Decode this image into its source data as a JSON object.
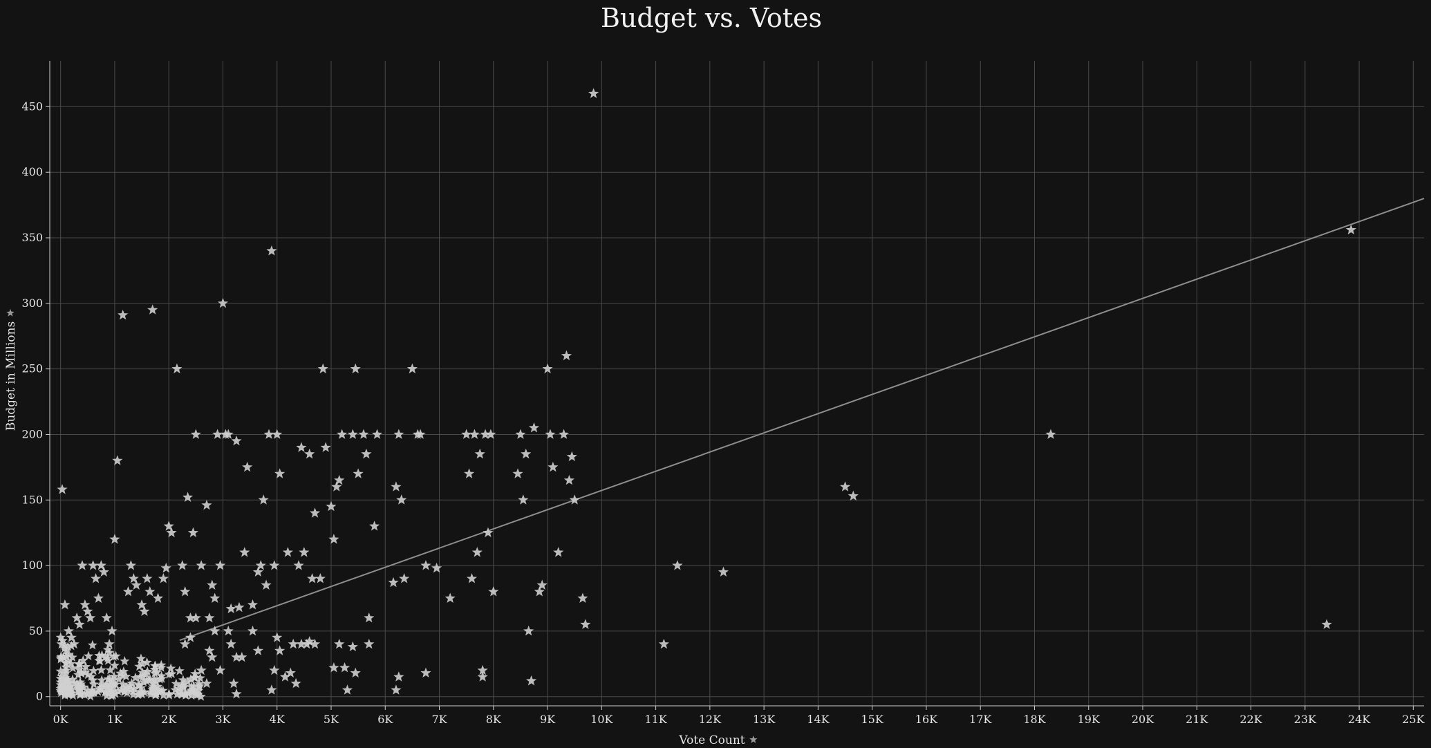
{
  "chart_data": {
    "type": "scatter",
    "title": "Budget vs. Votes",
    "xlabel": "Vote Count",
    "ylabel": "Budget in Millions",
    "xlim": [
      -200,
      25200
    ],
    "ylim": [
      -7,
      485
    ],
    "x_ticks": [
      0,
      1000,
      2000,
      3000,
      4000,
      5000,
      6000,
      7000,
      8000,
      9000,
      10000,
      11000,
      12000,
      13000,
      14000,
      15000,
      16000,
      17000,
      18000,
      19000,
      20000,
      21000,
      22000,
      23000,
      24000,
      25000
    ],
    "x_tick_labels": [
      "0K",
      "1K",
      "2K",
      "3K",
      "4K",
      "5K",
      "6K",
      "7K",
      "8K",
      "9K",
      "10K",
      "11K",
      "12K",
      "13K",
      "14K",
      "15K",
      "16K",
      "17K",
      "18K",
      "19K",
      "20K",
      "21K",
      "22K",
      "23K",
      "24K",
      "25K"
    ],
    "y_ticks": [
      0,
      50,
      100,
      150,
      200,
      250,
      300,
      350,
      400,
      450
    ],
    "y_tick_labels": [
      "0",
      "50",
      "100",
      "150",
      "200",
      "250",
      "300",
      "350",
      "400",
      "450"
    ],
    "grid": true,
    "marker": "star",
    "marker_color": "#cfcfcf",
    "trendline": {
      "x": [
        2200,
        25200
      ],
      "y": [
        43,
        380
      ],
      "color": "#8e8e8e"
    },
    "points": [
      [
        30,
        158
      ],
      [
        80,
        70
      ],
      [
        20,
        40
      ],
      [
        50,
        30
      ],
      [
        100,
        20
      ],
      [
        150,
        50
      ],
      [
        200,
        45
      ],
      [
        250,
        40
      ],
      [
        300,
        60
      ],
      [
        350,
        55
      ],
      [
        400,
        100
      ],
      [
        450,
        70
      ],
      [
        500,
        65
      ],
      [
        550,
        60
      ],
      [
        600,
        100
      ],
      [
        650,
        90
      ],
      [
        700,
        75
      ],
      [
        750,
        100
      ],
      [
        800,
        95
      ],
      [
        850,
        60
      ],
      [
        900,
        40
      ],
      [
        950,
        50
      ],
      [
        1000,
        120
      ],
      [
        1050,
        180
      ],
      [
        1150,
        291
      ],
      [
        1250,
        80
      ],
      [
        1300,
        100
      ],
      [
        1350,
        90
      ],
      [
        1400,
        85
      ],
      [
        1500,
        70
      ],
      [
        1550,
        65
      ],
      [
        1600,
        90
      ],
      [
        1650,
        80
      ],
      [
        1700,
        295
      ],
      [
        1800,
        75
      ],
      [
        1900,
        90
      ],
      [
        1950,
        98
      ],
      [
        2000,
        130
      ],
      [
        2050,
        125
      ],
      [
        2150,
        250
      ],
      [
        2250,
        100
      ],
      [
        2300,
        80
      ],
      [
        2350,
        152
      ],
      [
        2400,
        60
      ],
      [
        2450,
        125
      ],
      [
        2500,
        200
      ],
      [
        2600,
        100
      ],
      [
        2700,
        146
      ],
      [
        2750,
        60
      ],
      [
        2800,
        85
      ],
      [
        2850,
        75
      ],
      [
        2900,
        200
      ],
      [
        2950,
        100
      ],
      [
        3000,
        300
      ],
      [
        3050,
        200
      ],
      [
        3100,
        200
      ],
      [
        3150,
        67
      ],
      [
        3250,
        195
      ],
      [
        3300,
        68
      ],
      [
        3400,
        110
      ],
      [
        3450,
        175
      ],
      [
        3550,
        70
      ],
      [
        3650,
        95
      ],
      [
        3700,
        100
      ],
      [
        3750,
        150
      ],
      [
        3800,
        85
      ],
      [
        3850,
        200
      ],
      [
        3900,
        340
      ],
      [
        3950,
        100
      ],
      [
        4000,
        200
      ],
      [
        4050,
        170
      ],
      [
        4200,
        110
      ],
      [
        4300,
        40
      ],
      [
        4400,
        100
      ],
      [
        4450,
        190
      ],
      [
        4500,
        110
      ],
      [
        4600,
        185
      ],
      [
        4650,
        90
      ],
      [
        4700,
        140
      ],
      [
        4800,
        90
      ],
      [
        4850,
        250
      ],
      [
        4900,
        190
      ],
      [
        5000,
        145
      ],
      [
        5050,
        120
      ],
      [
        5100,
        160
      ],
      [
        5150,
        165
      ],
      [
        5200,
        200
      ],
      [
        5400,
        200
      ],
      [
        5450,
        250
      ],
      [
        5500,
        170
      ],
      [
        5600,
        200
      ],
      [
        5650,
        185
      ],
      [
        5700,
        60
      ],
      [
        5800,
        130
      ],
      [
        5850,
        200
      ],
      [
        6150,
        87
      ],
      [
        6200,
        160
      ],
      [
        6250,
        200
      ],
      [
        6300,
        150
      ],
      [
        6350,
        90
      ],
      [
        6500,
        250
      ],
      [
        6600,
        200
      ],
      [
        6650,
        200
      ],
      [
        6750,
        100
      ],
      [
        6950,
        98
      ],
      [
        7200,
        75
      ],
      [
        7500,
        200
      ],
      [
        7550,
        170
      ],
      [
        7600,
        90
      ],
      [
        7650,
        200
      ],
      [
        7700,
        110
      ],
      [
        7750,
        185
      ],
      [
        7800,
        20
      ],
      [
        7850,
        200
      ],
      [
        7900,
        125
      ],
      [
        7950,
        200
      ],
      [
        8000,
        80
      ],
      [
        8450,
        170
      ],
      [
        8500,
        200
      ],
      [
        8550,
        150
      ],
      [
        8600,
        185
      ],
      [
        8650,
        50
      ],
      [
        8700,
        12
      ],
      [
        8750,
        205
      ],
      [
        8850,
        80
      ],
      [
        8900,
        85
      ],
      [
        9000,
        250
      ],
      [
        9050,
        200
      ],
      [
        9100,
        175
      ],
      [
        9200,
        110
      ],
      [
        9300,
        200
      ],
      [
        9350,
        260
      ],
      [
        9400,
        165
      ],
      [
        9450,
        183
      ],
      [
        9500,
        150
      ],
      [
        9650,
        75
      ],
      [
        9700,
        55
      ],
      [
        9850,
        460
      ],
      [
        11150,
        40
      ],
      [
        11400,
        100
      ],
      [
        12250,
        95
      ],
      [
        14500,
        160
      ],
      [
        14650,
        153
      ],
      [
        18300,
        200
      ],
      [
        23400,
        55
      ],
      [
        23850,
        356
      ],
      [
        4000,
        45
      ],
      [
        4050,
        35
      ],
      [
        4150,
        15
      ],
      [
        4250,
        18
      ],
      [
        4350,
        10
      ],
      [
        4450,
        40
      ],
      [
        4550,
        40
      ],
      [
        4600,
        42
      ],
      [
        4700,
        40
      ],
      [
        5050,
        22
      ],
      [
        5150,
        40
      ],
      [
        5250,
        22
      ],
      [
        5300,
        5
      ],
      [
        5400,
        38
      ],
      [
        5450,
        18
      ],
      [
        5700,
        40
      ],
      [
        6200,
        5
      ],
      [
        6250,
        15
      ],
      [
        6750,
        18
      ],
      [
        7800,
        15
      ],
      [
        3900,
        5
      ],
      [
        3950,
        20
      ],
      [
        3650,
        35
      ],
      [
        3550,
        50
      ],
      [
        3350,
        30
      ],
      [
        3250,
        30
      ],
      [
        3150,
        40
      ],
      [
        3100,
        50
      ],
      [
        3200,
        10
      ],
      [
        3250,
        2
      ],
      [
        2950,
        20
      ],
      [
        2850,
        50
      ],
      [
        2800,
        30
      ],
      [
        2750,
        35
      ],
      [
        2700,
        10
      ],
      [
        2600,
        20
      ],
      [
        2500,
        60
      ],
      [
        2400,
        45
      ],
      [
        2300,
        40
      ]
    ]
  }
}
